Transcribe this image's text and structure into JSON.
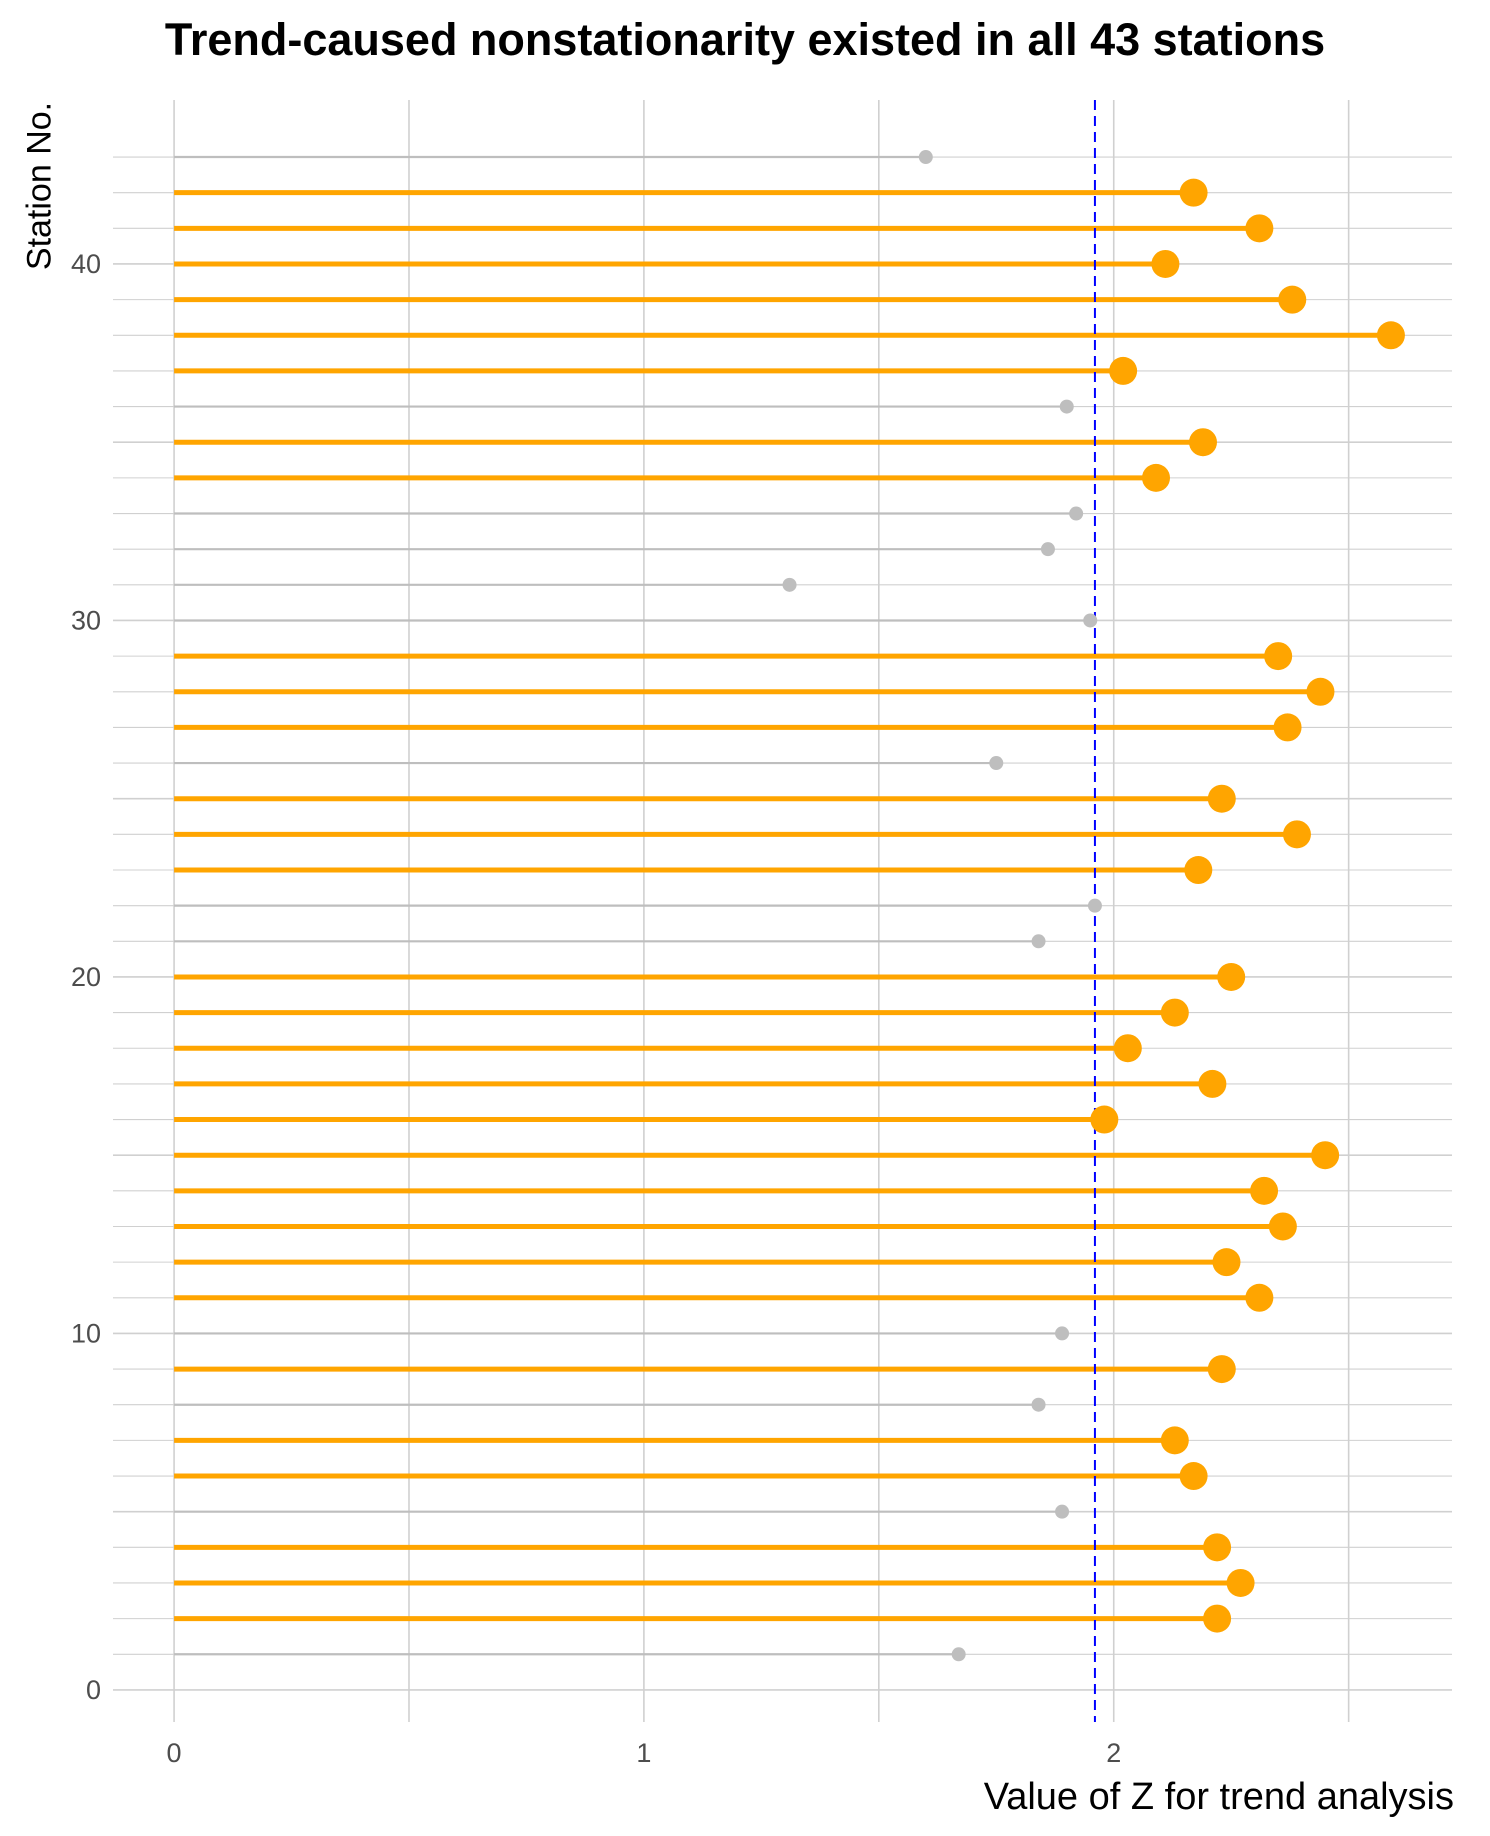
{
  "chart_data": {
    "type": "lollipop",
    "title": "Trend-caused nonstationarity existed in all 43 stations",
    "xlabel": "Value of Z for trend analysis",
    "ylabel": "Station No.",
    "xlim": [
      -0.13,
      2.72
    ],
    "ylim": [
      -0.9,
      44.6
    ],
    "x_ticks": [
      0,
      1,
      2
    ],
    "y_ticks": [
      0,
      10,
      20,
      30,
      40
    ],
    "threshold": 1.96,
    "colors": {
      "significant": "#FFA500",
      "not_significant": "#BEBEBE",
      "threshold_line": "#0000FF",
      "grid": "#D0D0D0"
    },
    "stations": [
      {
        "station": 1,
        "z": 1.67,
        "significant": false
      },
      {
        "station": 2,
        "z": 2.22,
        "significant": true
      },
      {
        "station": 3,
        "z": 2.27,
        "significant": true
      },
      {
        "station": 4,
        "z": 2.22,
        "significant": true
      },
      {
        "station": 5,
        "z": 1.89,
        "significant": false
      },
      {
        "station": 6,
        "z": 2.17,
        "significant": true
      },
      {
        "station": 7,
        "z": 2.13,
        "significant": true
      },
      {
        "station": 8,
        "z": 1.84,
        "significant": false
      },
      {
        "station": 9,
        "z": 2.23,
        "significant": true
      },
      {
        "station": 10,
        "z": 1.89,
        "significant": false
      },
      {
        "station": 11,
        "z": 2.31,
        "significant": true
      },
      {
        "station": 12,
        "z": 2.24,
        "significant": true
      },
      {
        "station": 13,
        "z": 2.36,
        "significant": true
      },
      {
        "station": 14,
        "z": 2.32,
        "significant": true
      },
      {
        "station": 15,
        "z": 2.45,
        "significant": true
      },
      {
        "station": 16,
        "z": 1.98,
        "significant": true
      },
      {
        "station": 17,
        "z": 2.21,
        "significant": true
      },
      {
        "station": 18,
        "z": 2.03,
        "significant": true
      },
      {
        "station": 19,
        "z": 2.13,
        "significant": true
      },
      {
        "station": 20,
        "z": 2.25,
        "significant": true
      },
      {
        "station": 21,
        "z": 1.84,
        "significant": false
      },
      {
        "station": 22,
        "z": 1.96,
        "significant": false
      },
      {
        "station": 23,
        "z": 2.18,
        "significant": true
      },
      {
        "station": 24,
        "z": 2.39,
        "significant": true
      },
      {
        "station": 25,
        "z": 2.23,
        "significant": true
      },
      {
        "station": 26,
        "z": 1.75,
        "significant": false
      },
      {
        "station": 27,
        "z": 2.37,
        "significant": true
      },
      {
        "station": 28,
        "z": 2.44,
        "significant": true
      },
      {
        "station": 29,
        "z": 2.35,
        "significant": true
      },
      {
        "station": 30,
        "z": 1.95,
        "significant": false
      },
      {
        "station": 31,
        "z": 1.31,
        "significant": false
      },
      {
        "station": 32,
        "z": 1.86,
        "significant": false
      },
      {
        "station": 33,
        "z": 1.92,
        "significant": false
      },
      {
        "station": 34,
        "z": 2.09,
        "significant": true
      },
      {
        "station": 35,
        "z": 2.19,
        "significant": true
      },
      {
        "station": 36,
        "z": 1.9,
        "significant": false
      },
      {
        "station": 37,
        "z": 2.02,
        "significant": true
      },
      {
        "station": 38,
        "z": 2.59,
        "significant": true
      },
      {
        "station": 39,
        "z": 2.38,
        "significant": true
      },
      {
        "station": 40,
        "z": 2.11,
        "significant": true
      },
      {
        "station": 41,
        "z": 2.31,
        "significant": true
      },
      {
        "station": 42,
        "z": 2.17,
        "significant": true
      },
      {
        "station": 43,
        "z": 1.6,
        "significant": false
      }
    ]
  }
}
